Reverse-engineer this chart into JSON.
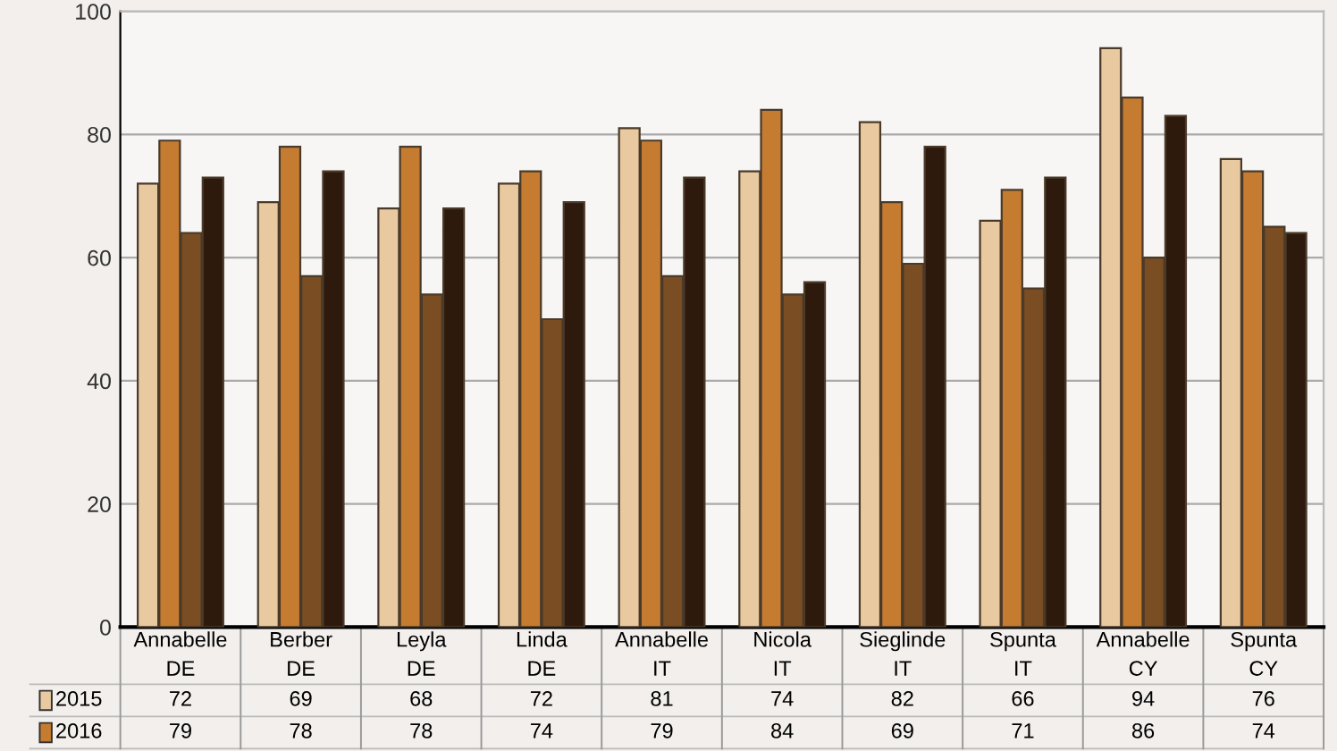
{
  "chart_data": {
    "type": "bar",
    "categories": [
      "Annabelle\nDE",
      "Berber\nDE",
      "Leyla\nDE",
      "Linda\nDE",
      "Annabelle\nIT",
      "Nicola\nIT",
      "Sieglinde\nIT",
      "Spunta\nIT",
      "Annabelle\nCY",
      "Spunta\nCY"
    ],
    "series": [
      {
        "name": "2015",
        "color": "#e8c9a0",
        "values": [
          72,
          69,
          68,
          72,
          81,
          74,
          82,
          66,
          94,
          76
        ],
        "value_labels": [
          "72",
          "69",
          "68",
          "72",
          "81",
          "74",
          "82",
          "66",
          "94",
          "76"
        ]
      },
      {
        "name": "2016",
        "color": "#c67c30",
        "values": [
          79,
          78,
          78,
          74,
          79,
          84,
          69,
          71,
          86,
          74
        ],
        "value_labels": [
          "79",
          "78",
          "78",
          "74",
          "79",
          "84",
          "69",
          "71",
          "86",
          "74"
        ]
      },
      {
        "color": "#7a4d22",
        "values": [
          64,
          57,
          54,
          50,
          57,
          54,
          59,
          55,
          60,
          65
        ]
      },
      {
        "color": "#2e1a0c",
        "values": [
          73,
          74,
          68,
          69,
          73,
          56,
          78,
          73,
          83,
          64
        ]
      }
    ],
    "ylim": [
      0,
      100
    ],
    "yticks": [
      0,
      20,
      40,
      60,
      80,
      100
    ],
    "grid": "y",
    "legend": "bottom left"
  }
}
